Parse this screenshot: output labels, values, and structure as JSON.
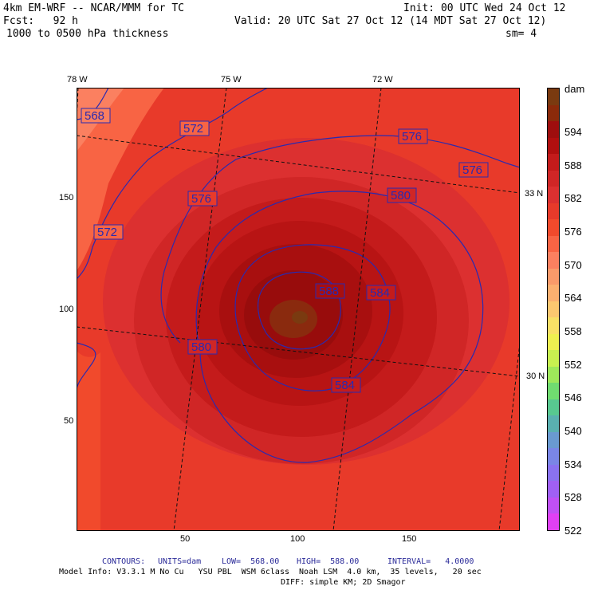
{
  "header": {
    "model": "4km EM-WRF -- NCAR/MMM for TC",
    "init": "Init: 00 UTC Wed 24 Oct 12",
    "fcst": "Fcst:   92 h",
    "valid": "Valid: 20 UTC Sat 27 Oct 12 (14 MDT Sat 27 Oct 12)",
    "field": "1000 to 0500 hPa thickness",
    "smooth": "sm= 4"
  },
  "axes": {
    "x_ticks": [
      "50",
      "100",
      "150"
    ],
    "y_ticks": [
      "150",
      "100",
      "50"
    ],
    "lon_labels": [
      "78 W",
      "75 W",
      "72 W"
    ],
    "lat_labels": [
      "33 N",
      "30 N"
    ]
  },
  "contour_labels": [
    "568",
    "572",
    "572",
    "576",
    "576",
    "576",
    "580",
    "580",
    "584",
    "584",
    "588"
  ],
  "colorbar": {
    "unit": "dam",
    "labels": [
      "594",
      "588",
      "582",
      "576",
      "570",
      "564",
      "558",
      "552",
      "546",
      "540",
      "534",
      "528",
      "522"
    ],
    "colors": [
      "#7a3a10",
      "#8b2a0a",
      "#9e0e0e",
      "#b10f0f",
      "#c41b1b",
      "#d02626",
      "#dc3030",
      "#e83a2a",
      "#f14a2c",
      "#f86444",
      "#fb8060",
      "#f99a6a",
      "#fbb070",
      "#fcc870",
      "#f8e066",
      "#eef050",
      "#c8f050",
      "#9ee85a",
      "#70dc70",
      "#58c890",
      "#5ab0b0",
      "#6a9ad0",
      "#7a86e6",
      "#8a72f0",
      "#a060f4",
      "#c050f4",
      "#e040f4"
    ]
  },
  "footer": {
    "contours_label": "CONTOURS:",
    "units": "UNITS=dam",
    "low": "LOW=  568.00",
    "high": "HIGH=  588.00",
    "interval": "INTERVAL=   4.0000",
    "model_info": "Model Info: V3.3.1 M No Cu   YSU PBL  WSM 6class  Noah LSM  4.0 km,  35 levels,   20 sec",
    "diff": "DIFF: simple KM; 2D Smagor"
  }
}
